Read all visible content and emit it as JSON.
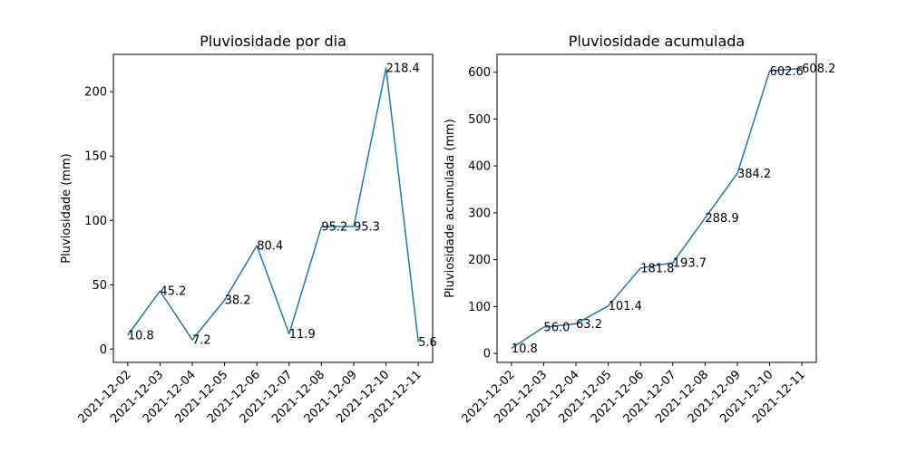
{
  "chart_data": [
    {
      "type": "line",
      "title": "Pluviosidade por dia",
      "xlabel": "",
      "ylabel": "Pluviosidade (mm)",
      "categories": [
        "2021-12-02",
        "2021-12-03",
        "2021-12-04",
        "2021-12-05",
        "2021-12-06",
        "2021-12-07",
        "2021-12-08",
        "2021-12-09",
        "2021-12-10",
        "2021-12-11"
      ],
      "values": [
        10.8,
        45.2,
        7.2,
        38.2,
        80.4,
        11.9,
        95.2,
        95.3,
        218.4,
        5.6
      ],
      "data_labels": [
        "10.8",
        "45.2",
        "7.2",
        "38.2",
        "80.4",
        "11.9",
        "95.2",
        "95.3",
        "218.4",
        "5.6"
      ],
      "yticks": [
        0,
        50,
        100,
        150,
        200
      ],
      "ytick_labels": [
        "0",
        "50",
        "100",
        "150",
        "200"
      ],
      "ylim": [
        -10.3,
        229.0
      ],
      "grid": false,
      "color": "#1f77b4"
    },
    {
      "type": "line",
      "title": "Pluviosidade acumulada",
      "xlabel": "",
      "ylabel": "Pluviosidade acumulada (mm)",
      "categories": [
        "2021-12-02",
        "2021-12-03",
        "2021-12-04",
        "2021-12-05",
        "2021-12-06",
        "2021-12-07",
        "2021-12-08",
        "2021-12-09",
        "2021-12-10",
        "2021-12-11"
      ],
      "values": [
        10.8,
        56.0,
        63.2,
        101.4,
        181.8,
        193.7,
        288.9,
        384.2,
        602.6,
        608.2
      ],
      "data_labels": [
        "10.8",
        "56.0",
        "63.2",
        "101.4",
        "181.8",
        "193.7",
        "288.9",
        "384.2",
        "602.6",
        "608.2"
      ],
      "yticks": [
        0,
        100,
        200,
        300,
        400,
        500,
        600
      ],
      "ytick_labels": [
        "0",
        "100",
        "200",
        "300",
        "400",
        "500",
        "600"
      ],
      "ylim": [
        -19.1,
        638.0
      ],
      "grid": false,
      "color": "#1f77b4"
    }
  ]
}
